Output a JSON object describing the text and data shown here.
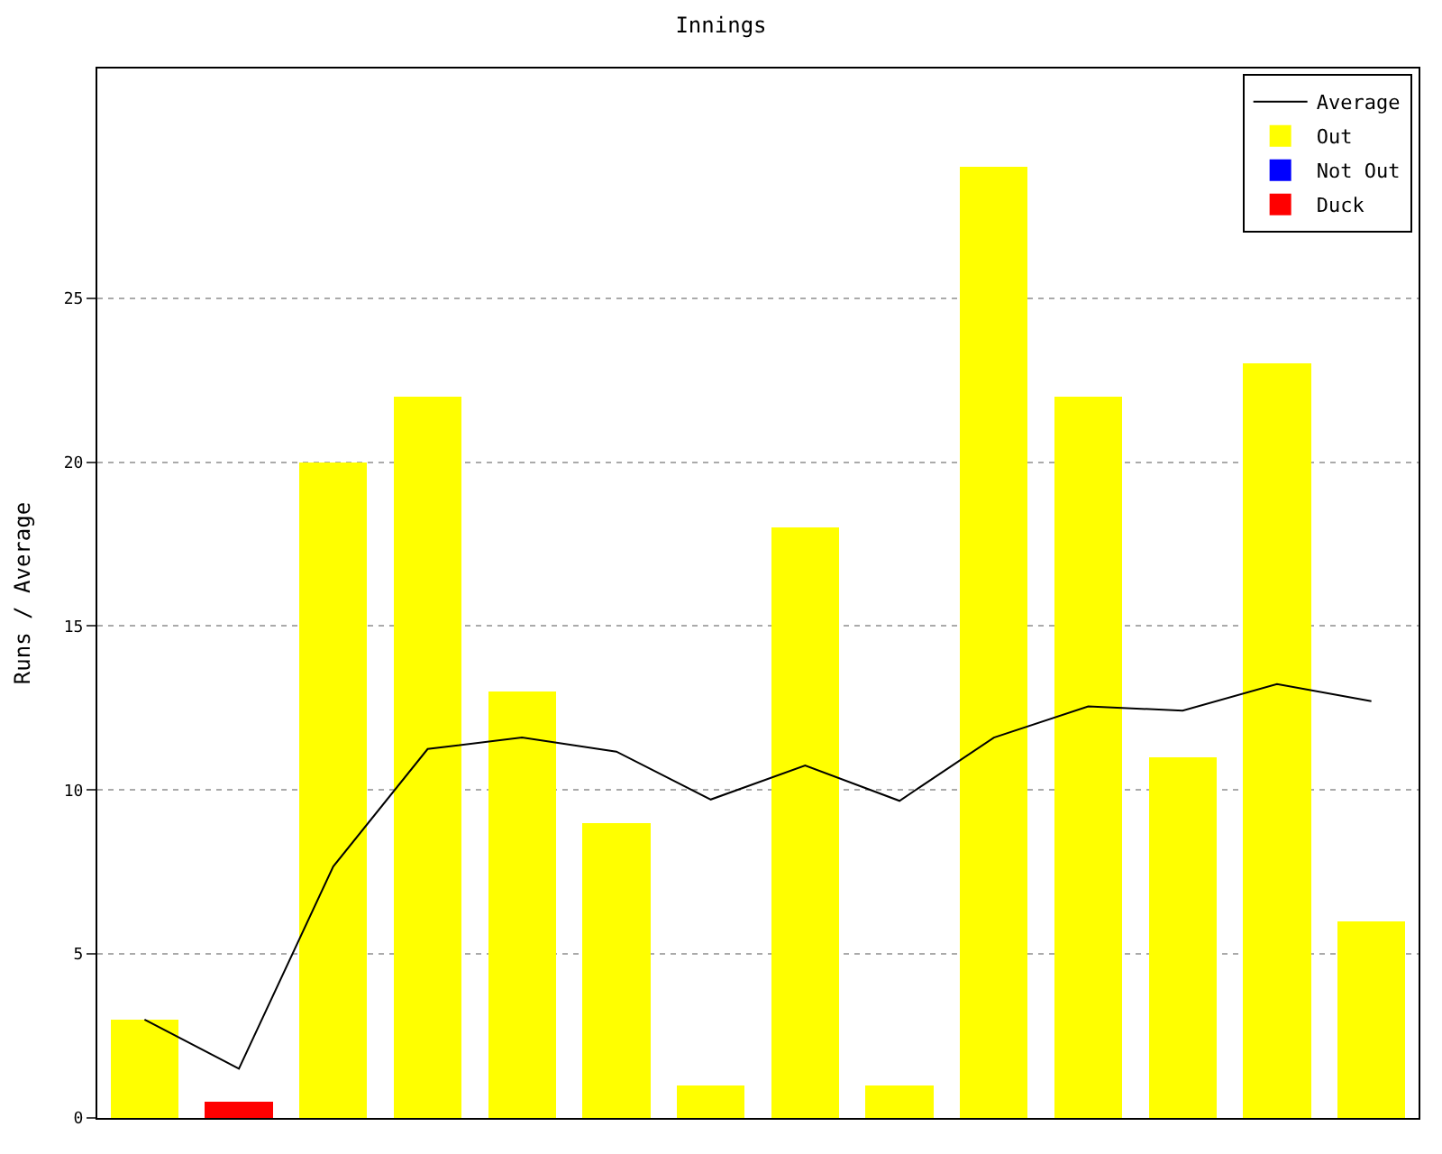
{
  "chart_data": {
    "type": "bar",
    "title": "Innings",
    "ylabel": "Runs / Average",
    "categories": [
      null,
      null,
      null,
      null,
      null,
      null,
      null,
      null,
      null,
      null,
      null,
      null,
      null,
      null
    ],
    "series": [
      {
        "name": "Average",
        "type": "line",
        "color": "#000000",
        "values": [
          3,
          1.5,
          7.67,
          11.25,
          11.6,
          11.17,
          9.71,
          10.75,
          9.67,
          11.6,
          12.55,
          12.42,
          13.23,
          12.71
        ]
      },
      {
        "name": "Out",
        "color": "#ffff00",
        "values": [
          3,
          null,
          20,
          22,
          13,
          9,
          1,
          18,
          1,
          29,
          22,
          11,
          23,
          6
        ]
      },
      {
        "name": "Not Out",
        "color": "#0000ff",
        "values": [
          null,
          null,
          null,
          null,
          null,
          null,
          null,
          null,
          null,
          null,
          null,
          null,
          null,
          null
        ]
      },
      {
        "name": "Duck",
        "color": "#ff0000",
        "values": [
          null,
          0.5,
          null,
          null,
          null,
          null,
          null,
          null,
          null,
          null,
          null,
          null,
          null,
          null
        ]
      }
    ],
    "stacked": true,
    "ylim": [
      0,
      32
    ],
    "yticks": [
      0,
      5,
      10,
      15,
      20,
      25
    ],
    "grid": "y",
    "legend": "top right",
    "marker": "none",
    "line_style": "solid"
  }
}
